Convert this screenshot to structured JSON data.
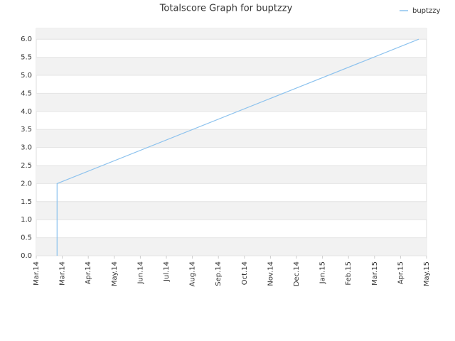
{
  "chart_data": {
    "type": "line",
    "title": "Totalscore Graph for buptzzy",
    "x": [
      0.8,
      0.8,
      14.7
    ],
    "series": [
      {
        "name": "buptzzy",
        "color": "#8cc2ee",
        "values": [
          0,
          2.0,
          6.0
        ]
      }
    ],
    "xlim": [
      0,
      15
    ],
    "xticks": [
      {
        "value": 0,
        "label": "Mar.14"
      },
      {
        "value": 1,
        "label": "Mar.14"
      },
      {
        "value": 2,
        "label": "Apr.14"
      },
      {
        "value": 3,
        "label": "May.14"
      },
      {
        "value": 4,
        "label": "Jun.14"
      },
      {
        "value": 5,
        "label": "Jul.14"
      },
      {
        "value": 6,
        "label": "Aug.14"
      },
      {
        "value": 7,
        "label": "Sep.14"
      },
      {
        "value": 8,
        "label": "Oct.14"
      },
      {
        "value": 9,
        "label": "Nov.14"
      },
      {
        "value": 10,
        "label": "Dec.14"
      },
      {
        "value": 11,
        "label": "Jan.15"
      },
      {
        "value": 12,
        "label": "Feb.15"
      },
      {
        "value": 13,
        "label": "Mar.15"
      },
      {
        "value": 14,
        "label": "Apr.15"
      },
      {
        "value": 15,
        "label": "May.15"
      }
    ],
    "ylim": [
      0,
      6.3
    ],
    "yticks": [
      {
        "value": 0,
        "label": "0.0"
      },
      {
        "value": 0.5,
        "label": "0.5"
      },
      {
        "value": 1,
        "label": "1.0"
      },
      {
        "value": 1.5,
        "label": "1.5"
      },
      {
        "value": 2,
        "label": "2.0"
      },
      {
        "value": 2.5,
        "label": "2.5"
      },
      {
        "value": 3,
        "label": "3.0"
      },
      {
        "value": 3.5,
        "label": "3.5"
      },
      {
        "value": 4,
        "label": "4.0"
      },
      {
        "value": 4.5,
        "label": "4.5"
      },
      {
        "value": 5,
        "label": "5.0"
      },
      {
        "value": 5.5,
        "label": "5.5"
      },
      {
        "value": 6,
        "label": "6.0"
      }
    ],
    "grid": true,
    "legend": "top-right"
  }
}
